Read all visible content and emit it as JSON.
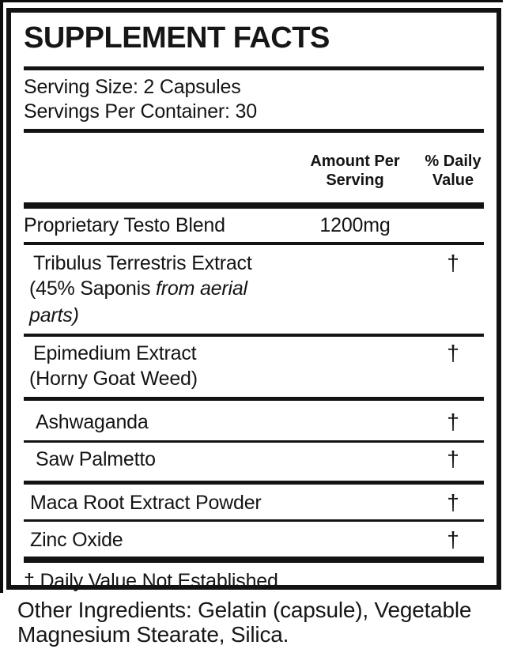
{
  "supplement_facts": {
    "title": "SUPPLEMENT FACTS",
    "serving_size": "Serving Size: 2 Capsules",
    "servings_per_container": "Servings Per Container: 30",
    "column_headers": {
      "amount": "Amount Per Serving",
      "daily_value": "% Daily Value"
    },
    "rows": [
      {
        "name": "Proprietary Testo Blend",
        "amount": "1200mg",
        "daily_value": ""
      },
      {
        "name": "Tribulus Terrestris Extract",
        "subline_regular": "(45% Saponis ",
        "subline_italic": "from aerial parts)",
        "amount": "",
        "daily_value": "†"
      },
      {
        "name": "Epimedium Extract",
        "subline_regular": "(Horny Goat Weed)",
        "subline_italic": "",
        "amount": "",
        "daily_value": "†"
      },
      {
        "name": "Ashwaganda",
        "amount": "",
        "daily_value": "†"
      },
      {
        "name": "Saw Palmetto",
        "amount": "",
        "daily_value": "†"
      },
      {
        "name": "Maca Root Extract Powder",
        "amount": "",
        "daily_value": "†"
      },
      {
        "name": "Zinc Oxide",
        "amount": "",
        "daily_value": "†"
      }
    ],
    "footnote": "† Daily Value Not Established"
  },
  "other_ingredients": "Other Ingredients: Gelatin (capsule), Vegetable Magnesium Stearate, Silica.",
  "colors": {
    "ink": "#131313",
    "background": "#ffffff"
  }
}
